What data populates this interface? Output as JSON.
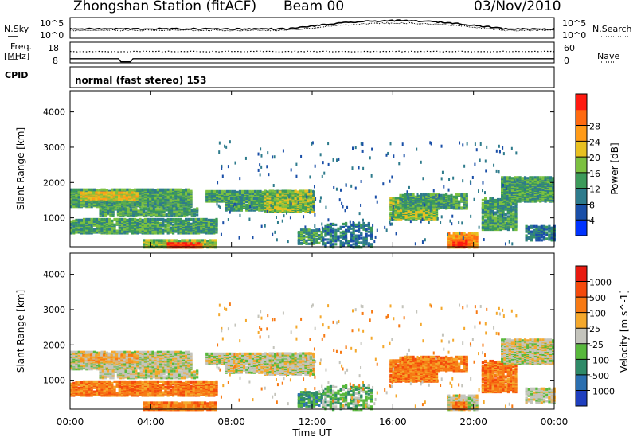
{
  "header": {
    "station_title": "Zhongshan Station (fitACF)",
    "beam_label": "Beam 00",
    "date_label": "03/Nov/2010"
  },
  "top_panels": {
    "nsky_label": "N.Sky",
    "nsky_ticks": [
      "10^5",
      "10^0"
    ],
    "nsearch_label": "N.Search",
    "nsearch_ticks": [
      "10^5",
      "10^0"
    ],
    "freq_label": "Freq.",
    "freq_unit": "[MHz]",
    "freq_ticks": [
      "18",
      "8"
    ],
    "nave_label": "Nave",
    "nave_ticks": [
      "60",
      "0"
    ],
    "cpid_label": "CPID",
    "cpid_text": "normal (fast stereo) 153"
  },
  "chart_data": [
    {
      "type": "heatmap",
      "title": "Power",
      "xlabel": "Time UT",
      "ylabel": "Slant Range [km]",
      "x_ticks": [
        "00:00",
        "04:00",
        "08:00",
        "12:00",
        "16:00",
        "20:00",
        "00:00"
      ],
      "y_ticks": [
        "1000",
        "2000",
        "3000",
        "4000"
      ],
      "ylim": [
        180,
        4600
      ],
      "colorbar_label": "Power [dB]",
      "colorbar_ticks": [
        "4",
        "8",
        "12",
        "16",
        "20",
        "24",
        "28"
      ],
      "colorbar_colors": [
        "#0033ff",
        "#1a4fa8",
        "#2e7b8c",
        "#3c9a5a",
        "#7cc040",
        "#e8c020",
        "#ff9b18",
        "#ff6a10",
        "#ff1a10"
      ]
    },
    {
      "type": "heatmap",
      "title": "Velocity",
      "xlabel": "Time UT",
      "ylabel": "Slant Range [km]",
      "x_ticks": [
        "00:00",
        "04:00",
        "08:00",
        "12:00",
        "16:00",
        "20:00",
        "00:00"
      ],
      "y_ticks": [
        "1000",
        "2000",
        "3000",
        "4000"
      ],
      "ylim": [
        180,
        4600
      ],
      "colorbar_label": "Velocity [m s^-1]",
      "colorbar_ticks": [
        "1000",
        "500",
        "100",
        "25",
        "-25",
        "-100",
        "-500",
        "-1000"
      ],
      "colorbar_colors": [
        "#1f3fbf",
        "#2b6fb0",
        "#2f8a68",
        "#58b83c",
        "#c4c4bc",
        "#f4a82c",
        "#f77a14",
        "#f44a0c",
        "#e81a10"
      ]
    }
  ],
  "x_axis_title": "Time UT"
}
